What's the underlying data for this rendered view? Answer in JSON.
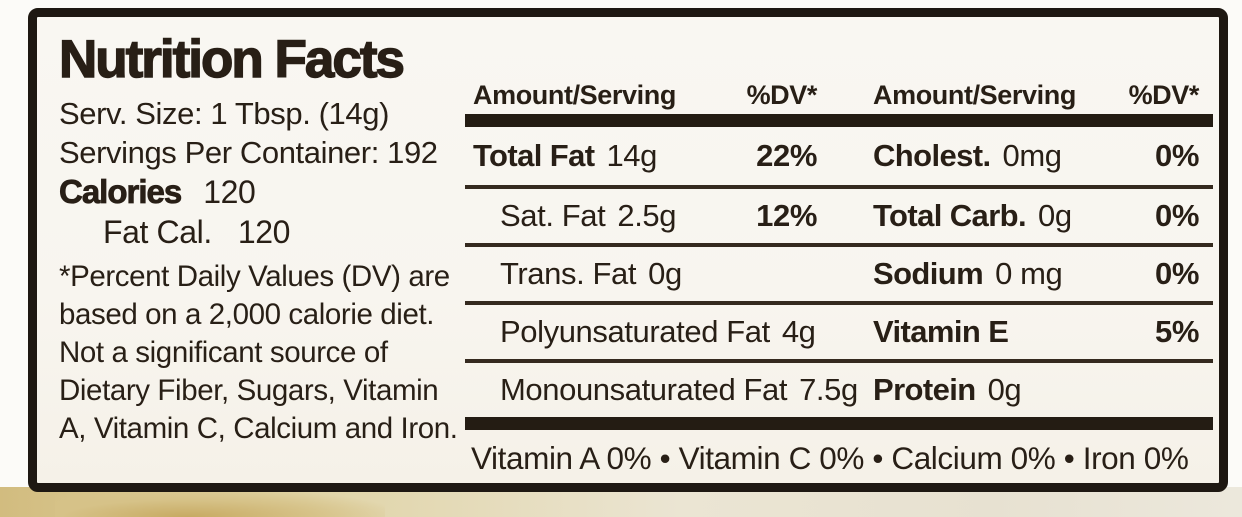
{
  "label": {
    "title": "Nutrition Facts",
    "serving": {
      "size_line": "Serv. Size: 1 Tbsp. (14g)",
      "per_container_line": "Servings Per Container: 192"
    },
    "calories": {
      "name": "Calories",
      "value": "120"
    },
    "fat_calories": {
      "name": "Fat Cal.",
      "value": "120"
    },
    "footnote_lines": [
      "*Percent Daily Values (DV) are",
      "based on a 2,000 calorie diet.",
      "Not a significant source of",
      "Dietary Fiber, Sugars, Vitamin",
      "A, Vitamin C, Calcium and Iron."
    ],
    "table": {
      "header": {
        "amount_serving": "Amount/Serving",
        "dv": "%DV*"
      },
      "left_rows": [
        {
          "name": "Total Fat",
          "amount": "14g",
          "dv": "22%"
        },
        {
          "name": "Sat. Fat",
          "amount": "2.5g",
          "dv": "12%"
        },
        {
          "name": "Trans. Fat",
          "amount": "0g",
          "dv": ""
        },
        {
          "name": "Polyunsaturated Fat",
          "amount": "4g",
          "dv": ""
        },
        {
          "name": "Monounsaturated Fat",
          "amount": "7.5g",
          "dv": ""
        }
      ],
      "right_rows": [
        {
          "name": "Cholest.",
          "amount": "0mg",
          "dv": "0%"
        },
        {
          "name": "Total Carb.",
          "amount": "0g",
          "dv": "0%"
        },
        {
          "name": "Sodium",
          "amount": "0 mg",
          "dv": "0%"
        },
        {
          "name": "Vitamin E",
          "amount": "",
          "dv": "5%"
        },
        {
          "name": "Protein",
          "amount": "0g",
          "dv": ""
        }
      ]
    },
    "micronutrients_line": "Vitamin A 0% • Vitamin C 0% • Calcium 0% • Iron 0%",
    "colors": {
      "ink": "#281f16",
      "label_bg": "#f8f6f0",
      "packaging": "#d3bd80"
    }
  }
}
